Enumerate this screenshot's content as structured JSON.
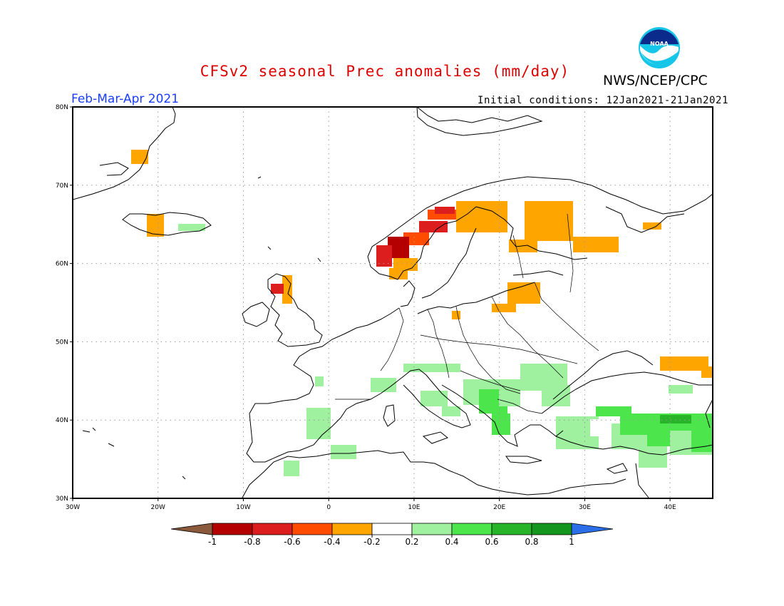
{
  "header": {
    "title": "CFSv2 seasonal Prec anomalies (mm/day)",
    "agency": "NWS/NCEP/CPC",
    "period": "Feb-Mar-Apr 2021",
    "initial_conditions": "Initial conditions: 12Jan2021-21Jan2021",
    "logo_text": "NOAA"
  },
  "map": {
    "lon_range": [
      -30,
      45
    ],
    "lat_range": [
      30,
      80
    ],
    "gridlines": true,
    "lat_labels": [
      "80N",
      "70N",
      "60N",
      "50N",
      "40N",
      "30N"
    ],
    "lon_labels": [
      "30W",
      "20W",
      "10W",
      "0",
      "10E",
      "20E",
      "30E",
      "40E"
    ]
  },
  "colorbar": {
    "labels": [
      "-1",
      "-0.8",
      "-0.6",
      "-0.4",
      "-0.2",
      "0.2",
      "0.4",
      "0.6",
      "0.8",
      "1"
    ],
    "colors": [
      "#8b5a3c",
      "#b40000",
      "#dc1e1e",
      "#ff4c00",
      "#ffa500",
      "#ffffff",
      "#9ff09f",
      "#4ce64c",
      "#28b428",
      "#14961e",
      "#2b6fe8"
    ]
  },
  "colors": {
    "title": "#e00000",
    "period": "#1a3cff",
    "orange": "#ffa500",
    "orange_red": "#ff4c00",
    "red": "#dc1e1e",
    "dark_red": "#b40000",
    "light_green": "#9ff09f",
    "green": "#4ce64c",
    "mid_green": "#28b428"
  }
}
